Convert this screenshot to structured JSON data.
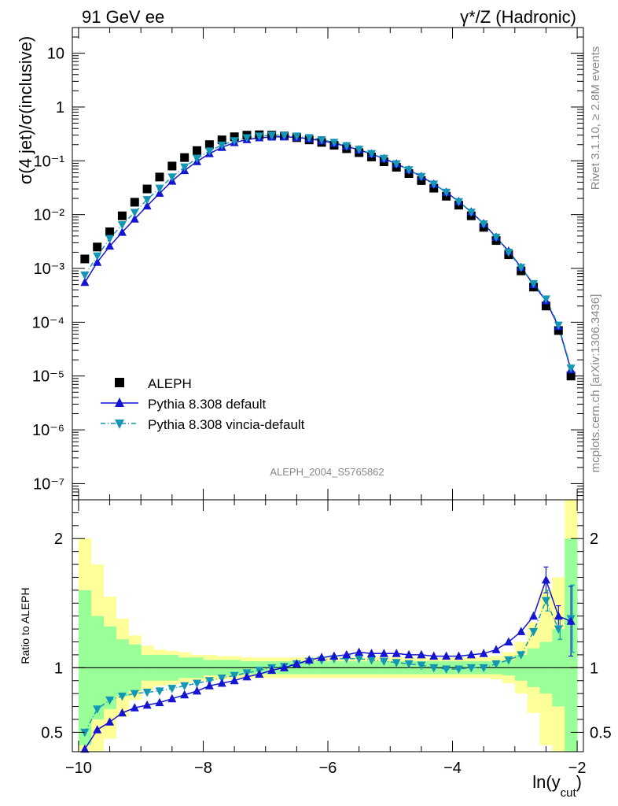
{
  "header": {
    "left": "91 GeV ee",
    "right": "γ*/Z (Hadronic)"
  },
  "side_labels": {
    "rivet": "Rivet 3.1.10, ≥ 2.8M events",
    "mcplots": "mcplots.cern.ch [arXiv:1306.3436]"
  },
  "analysis_id": "ALEPH_2004_S5765862",
  "colors": {
    "data": "#000000",
    "pythia_default": "#1414d2",
    "vincia": "#1496b4",
    "band_yellow": "#ffff99",
    "band_green": "#99ff99"
  },
  "chart_data": [
    {
      "type": "scatter",
      "panel": "main",
      "ylabel": "σ(4 jet)/σ(inclusive)",
      "xlim": [
        -10.1,
        -1.9
      ],
      "ylim": [
        5e-08,
        30
      ],
      "yscale": "log",
      "x_ticks": [
        -10,
        -8,
        -6,
        -4,
        -2
      ],
      "y_tick_labels": [
        "10",
        "1",
        "10⁻¹",
        "10⁻²",
        "10⁻³",
        "10⁻⁴",
        "10⁻⁵",
        "10⁻⁶",
        "10⁻⁷"
      ],
      "legend_position": "lower-left",
      "x": [
        -9.9,
        -9.7,
        -9.5,
        -9.3,
        -9.1,
        -8.9,
        -8.7,
        -8.5,
        -8.3,
        -8.1,
        -7.9,
        -7.7,
        -7.5,
        -7.3,
        -7.1,
        -6.9,
        -6.7,
        -6.5,
        -6.3,
        -6.1,
        -5.9,
        -5.7,
        -5.5,
        -5.3,
        -5.1,
        -4.9,
        -4.7,
        -4.5,
        -4.3,
        -4.1,
        -3.9,
        -3.7,
        -3.5,
        -3.3,
        -3.1,
        -2.9,
        -2.7,
        -2.5,
        -2.3,
        -2.1
      ],
      "series": [
        {
          "name": "ALEPH",
          "marker": "square",
          "values": [
            0.0015,
            0.0025,
            0.0048,
            0.0095,
            0.017,
            0.03,
            0.05,
            0.08,
            0.115,
            0.155,
            0.2,
            0.245,
            0.28,
            0.3,
            0.305,
            0.3,
            0.29,
            0.27,
            0.245,
            0.22,
            0.195,
            0.168,
            0.142,
            0.118,
            0.096,
            0.076,
            0.058,
            0.043,
            0.031,
            0.022,
            0.015,
            0.0095,
            0.0058,
            0.0033,
            0.0018,
            0.0009,
            0.00045,
            0.0002,
            7e-05,
            1e-05
          ]
        },
        {
          "name": "Pythia 8.308 default",
          "marker": "triangle-up",
          "values": [
            0.00055,
            0.0013,
            0.0026,
            0.0047,
            0.0083,
            0.0145,
            0.025,
            0.042,
            0.066,
            0.097,
            0.136,
            0.178,
            0.218,
            0.248,
            0.268,
            0.278,
            0.28,
            0.272,
            0.256,
            0.236,
            0.212,
            0.186,
            0.16,
            0.134,
            0.11,
            0.088,
            0.068,
            0.051,
            0.037,
            0.026,
            0.0175,
            0.0112,
            0.0068,
            0.0038,
            0.0021,
            0.00105,
            0.0005,
            0.00025,
            8.33e-05,
            1.31e-05
          ]
        },
        {
          "name": "Pythia 8.308 vincia-default",
          "marker": "triangle-down",
          "values": [
            0.00075,
            0.0017,
            0.0036,
            0.0065,
            0.011,
            0.019,
            0.031,
            0.05,
            0.077,
            0.111,
            0.152,
            0.196,
            0.237,
            0.268,
            0.288,
            0.298,
            0.298,
            0.288,
            0.27,
            0.247,
            0.22,
            0.191,
            0.163,
            0.136,
            0.111,
            0.088,
            0.068,
            0.051,
            0.037,
            0.026,
            0.0174,
            0.0111,
            0.0067,
            0.0038,
            0.002,
            0.00104,
            0.00052,
            0.00027,
            8.8e-05,
            1.4e-05
          ]
        }
      ]
    },
    {
      "type": "line",
      "panel": "ratio",
      "xlabel": "ln(y_cut)",
      "ylabel": "Ratio to ALEPH",
      "xlim": [
        -10.1,
        -1.9
      ],
      "ylim": [
        0.35,
        2.3
      ],
      "x_ticks": [
        -10,
        -8,
        -6,
        -4,
        -2
      ],
      "y_ticks": [
        0.5,
        1,
        2
      ],
      "x": [
        -9.9,
        -9.7,
        -9.5,
        -9.3,
        -9.1,
        -8.9,
        -8.7,
        -8.5,
        -8.3,
        -8.1,
        -7.9,
        -7.7,
        -7.5,
        -7.3,
        -7.1,
        -6.9,
        -6.7,
        -6.5,
        -6.3,
        -6.1,
        -5.9,
        -5.7,
        -5.5,
        -5.3,
        -5.1,
        -4.9,
        -4.7,
        -4.5,
        -4.3,
        -4.1,
        -3.9,
        -3.7,
        -3.5,
        -3.3,
        -3.1,
        -2.9,
        -2.7,
        -2.5,
        -2.3,
        -2.1
      ],
      "bands": {
        "green_half_width": [
          0.6,
          0.4,
          0.32,
          0.22,
          0.18,
          0.1,
          0.1,
          0.1,
          0.08,
          0.08,
          0.06,
          0.06,
          0.06,
          0.05,
          0.05,
          0.05,
          0.05,
          0.05,
          0.05,
          0.05,
          0.05,
          0.05,
          0.05,
          0.05,
          0.05,
          0.05,
          0.05,
          0.05,
          0.05,
          0.05,
          0.05,
          0.05,
          0.05,
          0.05,
          0.06,
          0.1,
          0.15,
          0.2,
          0.3,
          1.0
        ],
        "yellow_half_width": [
          1.0,
          0.8,
          0.55,
          0.38,
          0.25,
          0.17,
          0.14,
          0.13,
          0.12,
          0.1,
          0.1,
          0.09,
          0.09,
          0.08,
          0.08,
          0.08,
          0.08,
          0.08,
          0.08,
          0.08,
          0.08,
          0.08,
          0.08,
          0.08,
          0.08,
          0.08,
          0.08,
          0.08,
          0.08,
          0.08,
          0.08,
          0.08,
          0.08,
          0.09,
          0.12,
          0.2,
          0.35,
          0.6,
          0.7,
          1.4
        ]
      },
      "series": [
        {
          "name": "Pythia 8.308 default",
          "marker": "triangle-up",
          "values": [
            0.37,
            0.52,
            0.58,
            0.65,
            0.69,
            0.71,
            0.73,
            0.76,
            0.79,
            0.82,
            0.86,
            0.88,
            0.9,
            0.93,
            0.95,
            0.98,
            1.0,
            1.03,
            1.06,
            1.08,
            1.09,
            1.1,
            1.12,
            1.11,
            1.11,
            1.11,
            1.1,
            1.1,
            1.09,
            1.09,
            1.09,
            1.1,
            1.11,
            1.14,
            1.2,
            1.28,
            1.4,
            1.68,
            1.4,
            1.36
          ]
        },
        {
          "name": "Pythia 8.308 vincia-default",
          "marker": "triangle-down",
          "values": [
            0.5,
            0.68,
            0.75,
            0.78,
            0.8,
            0.81,
            0.82,
            0.84,
            0.86,
            0.88,
            0.9,
            0.92,
            0.94,
            0.96,
            0.98,
            1.0,
            1.01,
            1.03,
            1.05,
            1.06,
            1.07,
            1.07,
            1.07,
            1.06,
            1.05,
            1.04,
            1.03,
            1.02,
            1.0,
            0.99,
            0.99,
            1.0,
            1.0,
            1.03,
            1.06,
            1.1,
            1.28,
            1.52,
            1.3,
            1.38
          ]
        }
      ],
      "error_bars": {
        "pythia_default": [
          null,
          null,
          null,
          null,
          null,
          null,
          null,
          null,
          null,
          null,
          null,
          null,
          null,
          null,
          null,
          null,
          null,
          null,
          null,
          null,
          null,
          null,
          null,
          null,
          null,
          null,
          null,
          null,
          null,
          null,
          null,
          null,
          null,
          null,
          null,
          null,
          null,
          0.1,
          0.08,
          0.27
        ],
        "vincia": [
          null,
          null,
          null,
          null,
          null,
          null,
          null,
          null,
          null,
          null,
          null,
          null,
          null,
          null,
          null,
          null,
          null,
          null,
          null,
          null,
          null,
          null,
          null,
          null,
          null,
          null,
          null,
          null,
          null,
          null,
          null,
          null,
          null,
          null,
          null,
          null,
          null,
          0.08,
          0.08,
          0.26
        ]
      }
    }
  ]
}
